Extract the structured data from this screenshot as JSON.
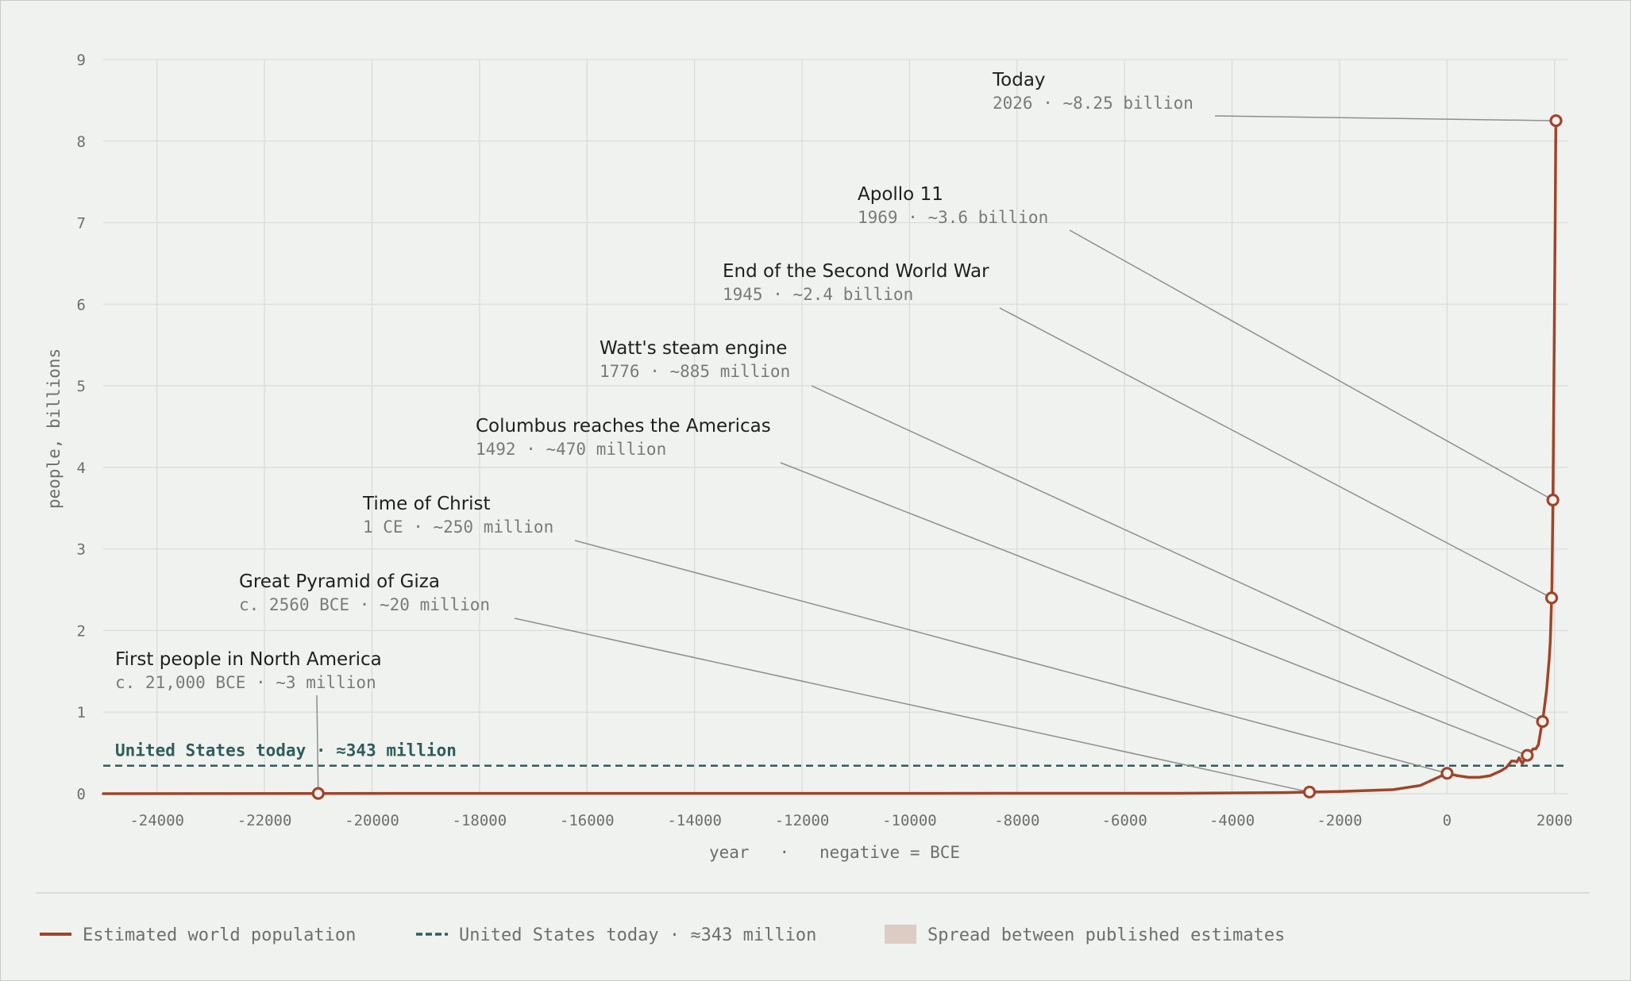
{
  "colors": {
    "background": "#f0f2ef",
    "grid": "#d9dbd8",
    "population_line": "#a0452a",
    "reference_line": "#2e5d5b",
    "spread_band": "#dcccc4",
    "leader": "#8e8f8c"
  },
  "chart_data": {
    "type": "line",
    "xlabel": "year   ·   negative = BCE",
    "ylabel": "people, billions",
    "xlim": [
      -25000,
      2240
    ],
    "ylim": [
      0,
      9
    ],
    "x_ticks": [
      -24000,
      -22000,
      -20000,
      -18000,
      -16000,
      -14000,
      -12000,
      -10000,
      -8000,
      -6000,
      -4000,
      -2000,
      0,
      2000
    ],
    "y_ticks": [
      0,
      1,
      2,
      3,
      4,
      5,
      6,
      7,
      8,
      9
    ],
    "grid": true,
    "series": [
      {
        "name": "Estimated world population",
        "x": [
          -25000,
          -21000,
          -10000,
          -8000,
          -5000,
          -3000,
          -2560,
          -2000,
          -1000,
          -500,
          1,
          200,
          400,
          600,
          800,
          1000,
          1100,
          1200,
          1250,
          1300,
          1340,
          1400,
          1492,
          1500,
          1600,
          1650,
          1700,
          1750,
          1776,
          1800,
          1850,
          1900,
          1920,
          1927,
          1940,
          1945,
          1950,
          1960,
          1969,
          1975,
          1987,
          1999,
          2011,
          2022,
          2026
        ],
        "y": [
          0,
          0.003,
          0.004,
          0.005,
          0.005,
          0.014,
          0.02,
          0.027,
          0.05,
          0.1,
          0.25,
          0.22,
          0.2,
          0.2,
          0.22,
          0.28,
          0.32,
          0.4,
          0.4,
          0.39,
          0.44,
          0.37,
          0.47,
          0.46,
          0.55,
          0.55,
          0.6,
          0.8,
          0.885,
          1.0,
          1.26,
          1.65,
          1.86,
          2.0,
          2.3,
          2.4,
          2.53,
          3.03,
          3.6,
          4.07,
          5.0,
          6.0,
          7.0,
          8.0,
          8.25
        ]
      }
    ],
    "reference_line": {
      "value": 0.343,
      "label": "United States today  ·  ≈343 million"
    },
    "annotations": [
      {
        "x": -21000,
        "y": 0.003,
        "title": "First people in North America",
        "subtitle": "c. 21,000 BCE · ~3 million"
      },
      {
        "x": -2560,
        "y": 0.02,
        "title": "Great Pyramid of Giza",
        "subtitle": "c. 2560 BCE · ~20 million"
      },
      {
        "x": 1,
        "y": 0.25,
        "title": "Time of Christ",
        "subtitle": "1 CE · ~250 million"
      },
      {
        "x": 1492,
        "y": 0.47,
        "title": "Columbus reaches the Americas",
        "subtitle": "1492 · ~470 million"
      },
      {
        "x": 1776,
        "y": 0.885,
        "title": "Watt's steam engine",
        "subtitle": "1776 · ~885 million"
      },
      {
        "x": 1945,
        "y": 2.4,
        "title": "End of the Second World War",
        "subtitle": "1945 · ~2.4 billion"
      },
      {
        "x": 1969,
        "y": 3.6,
        "title": "Apollo 11",
        "subtitle": "1969 · ~3.6 billion"
      },
      {
        "x": 2026,
        "y": 8.25,
        "title": "Today",
        "subtitle": "2026 · ~8.25 billion"
      }
    ]
  },
  "legend": {
    "items": [
      {
        "label": "Estimated world population",
        "kind": "line"
      },
      {
        "label": "United States today · ≈343 million",
        "kind": "dashed"
      },
      {
        "label": "Spread between published estimates",
        "kind": "band"
      }
    ]
  }
}
